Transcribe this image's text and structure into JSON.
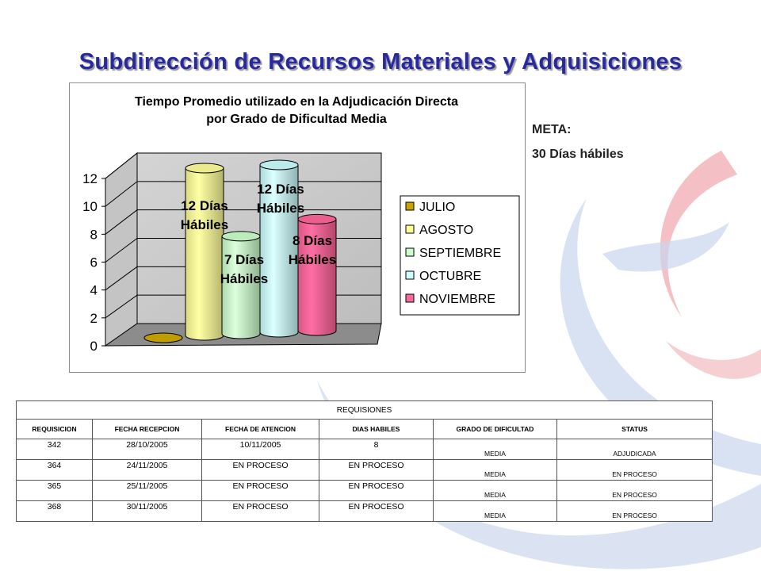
{
  "page": {
    "title": "Subdirección de Recursos Materiales y Adquisiciones"
  },
  "colors": {
    "title": "#2828a0",
    "julio": "#c9a400",
    "agosto": "#ffff99",
    "septiembre": "#ccffcc",
    "octubre": "#ccffff",
    "noviembre": "#ff6699"
  },
  "chart_data": {
    "type": "bar",
    "title_lines": [
      "Tiempo Promedio utilizado en la Adjudicación Directa",
      "por Grado de Dificultad Media"
    ],
    "ylim": [
      0,
      12
    ],
    "yticks": [
      "0",
      "2",
      "4",
      "6",
      "8",
      "10",
      "12"
    ],
    "grid": true,
    "legend_position": "right",
    "series": [
      {
        "name": "JULIO",
        "value": 0,
        "color": "#c9a400",
        "label": []
      },
      {
        "name": "AGOSTO",
        "value": 12,
        "color": "#ffff99",
        "label": [
          "12 Días",
          "Hábiles"
        ]
      },
      {
        "name": "SEPTIEMBRE",
        "value": 7,
        "color": "#ccffcc",
        "label": [
          "7 Días",
          "Hábiles"
        ]
      },
      {
        "name": "OCTUBRE",
        "value": 12,
        "color": "#ccffff",
        "label": [
          "12 Días",
          "Hábiles"
        ]
      },
      {
        "name": "NOVIEMBRE",
        "value": 8,
        "color": "#ff6699",
        "label": [
          "8 Días",
          "Hábiles"
        ]
      }
    ]
  },
  "meta": {
    "label": "META:",
    "value": "30 Días hábiles"
  },
  "table": {
    "caption": "REQUISIONES",
    "headers": [
      "REQUISICION",
      "FECHA RECEPCION",
      "FECHA DE ATENCION",
      "DIAS HABILES",
      "GRADO DE DIFICULTAD",
      "STATUS"
    ],
    "rows": [
      [
        "342",
        "28/10/2005",
        "10/11/2005",
        "8",
        "MEDIA",
        "ADJUDICADA"
      ],
      [
        "364",
        "24/11/2005",
        "EN PROCESO",
        "EN PROCESO",
        "MEDIA",
        "EN PROCESO"
      ],
      [
        "365",
        "25/11/2005",
        "EN PROCESO",
        "EN PROCESO",
        "MEDIA",
        "EN PROCESO"
      ],
      [
        "368",
        "30/11/2005",
        "EN PROCESO",
        "EN PROCESO",
        "MEDIA",
        "EN PROCESO"
      ]
    ]
  }
}
